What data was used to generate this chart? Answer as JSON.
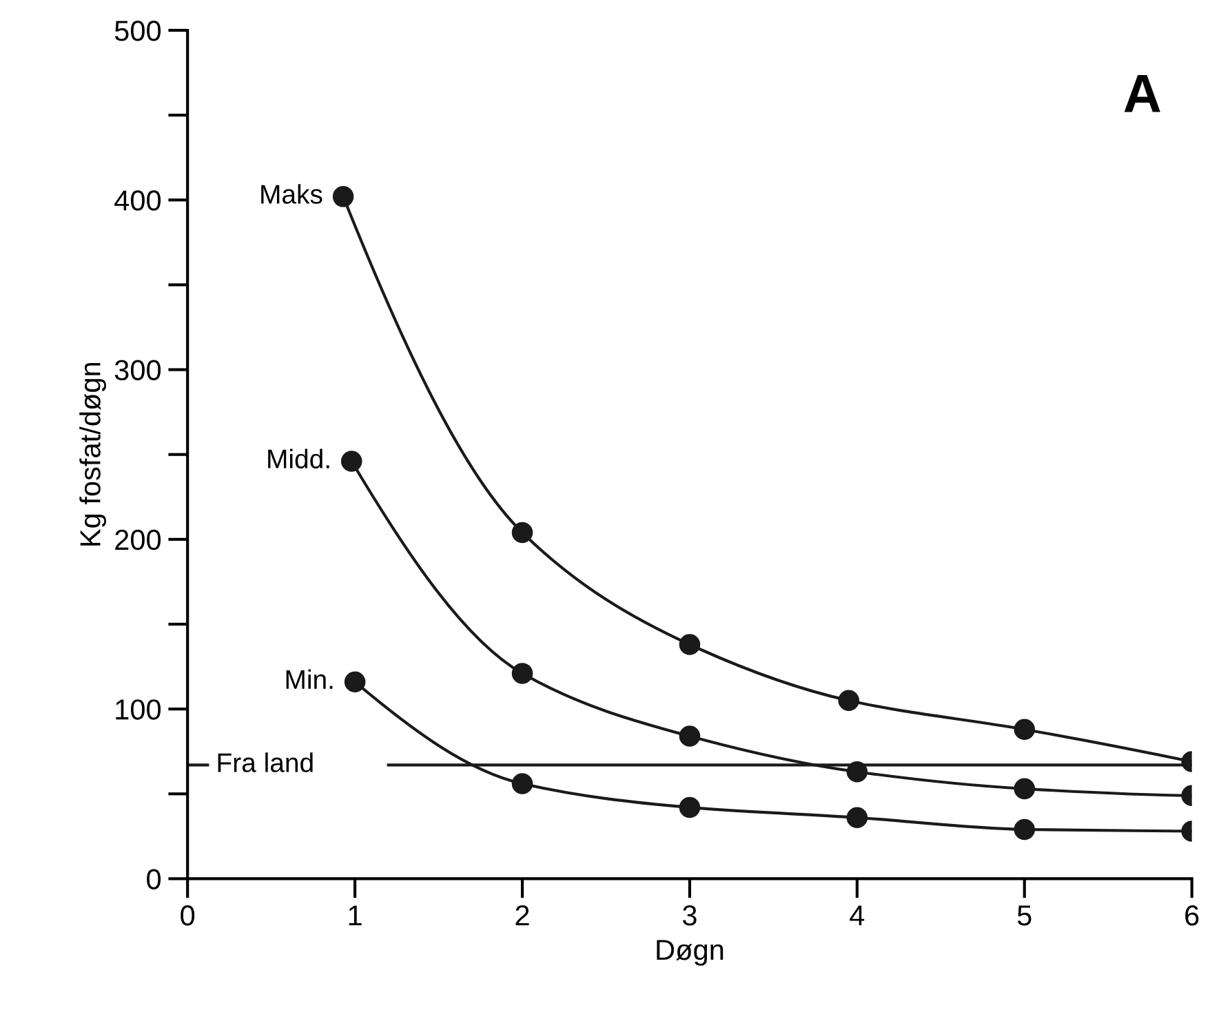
{
  "chart_data": {
    "type": "line",
    "title": "A",
    "xlabel": "Døgn",
    "ylabel": "Kg fosfat/døgn",
    "series": [
      {
        "name": "Maks",
        "color": "#1a1a1a",
        "x": [
          0.93,
          2,
          3,
          3.95,
          5,
          6
        ],
        "values": [
          402,
          204,
          138,
          105,
          88,
          69
        ]
      },
      {
        "name": "Midd.",
        "color": "#1a1a1a",
        "x": [
          0.98,
          2,
          3,
          4,
          5,
          6
        ],
        "values": [
          246,
          121,
          84,
          63,
          53,
          49
        ]
      },
      {
        "name": "Min.",
        "color": "#1a1a1a",
        "x": [
          1,
          2,
          3,
          4,
          5,
          6
        ],
        "values": [
          116,
          56,
          42,
          36,
          29,
          28
        ]
      }
    ],
    "ref_lines": [
      {
        "axis": "y",
        "value": 67,
        "label": "Fra land",
        "color": "#1a1a1a",
        "line_style": "solid"
      }
    ],
    "xlim": [
      0,
      6
    ],
    "ylim": [
      0,
      500
    ],
    "xticks": [
      0,
      1,
      2,
      3,
      4,
      5,
      6
    ],
    "yticks": [
      0,
      {
        "value": 50,
        "label": null
      },
      100,
      {
        "value": 150,
        "label": null
      },
      200,
      {
        "value": 250,
        "label": null
      },
      300,
      {
        "value": 350,
        "label": null
      },
      400,
      {
        "value": 450,
        "label": null
      },
      500
    ],
    "marker": "circle",
    "line_style": "solid",
    "grid": false,
    "legend": false
  }
}
